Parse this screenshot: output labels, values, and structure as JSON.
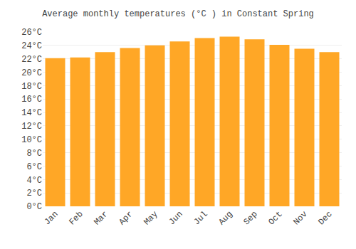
{
  "chart_data": {
    "type": "bar",
    "title": "Average monthly temperatures (°C ) in Constant Spring",
    "categories": [
      "Jan",
      "Feb",
      "Mar",
      "Apr",
      "May",
      "Jun",
      "Jul",
      "Aug",
      "Sep",
      "Oct",
      "Nov",
      "Dec"
    ],
    "values": [
      22.1,
      22.2,
      23.0,
      23.6,
      24.0,
      24.6,
      25.1,
      25.3,
      24.9,
      24.1,
      23.5,
      23.0
    ],
    "color": "#FFA726",
    "ylim": [
      0,
      26
    ],
    "yticks": [
      {
        "value": 0,
        "label": "0°C"
      },
      {
        "value": 2,
        "label": "2°C"
      },
      {
        "value": 4,
        "label": "4°C"
      },
      {
        "value": 6,
        "label": "6°C"
      },
      {
        "value": 8,
        "label": "8°C"
      },
      {
        "value": 10,
        "label": "10°C"
      },
      {
        "value": 12,
        "label": "12°C"
      },
      {
        "value": 14,
        "label": "14°C"
      },
      {
        "value": 16,
        "label": "16°C"
      },
      {
        "value": 18,
        "label": "18°C"
      },
      {
        "value": 20,
        "label": "20°C"
      },
      {
        "value": 22,
        "label": "22°C"
      },
      {
        "value": 24,
        "label": "24°C"
      },
      {
        "value": 26,
        "label": "26°C"
      }
    ],
    "grid": true
  }
}
